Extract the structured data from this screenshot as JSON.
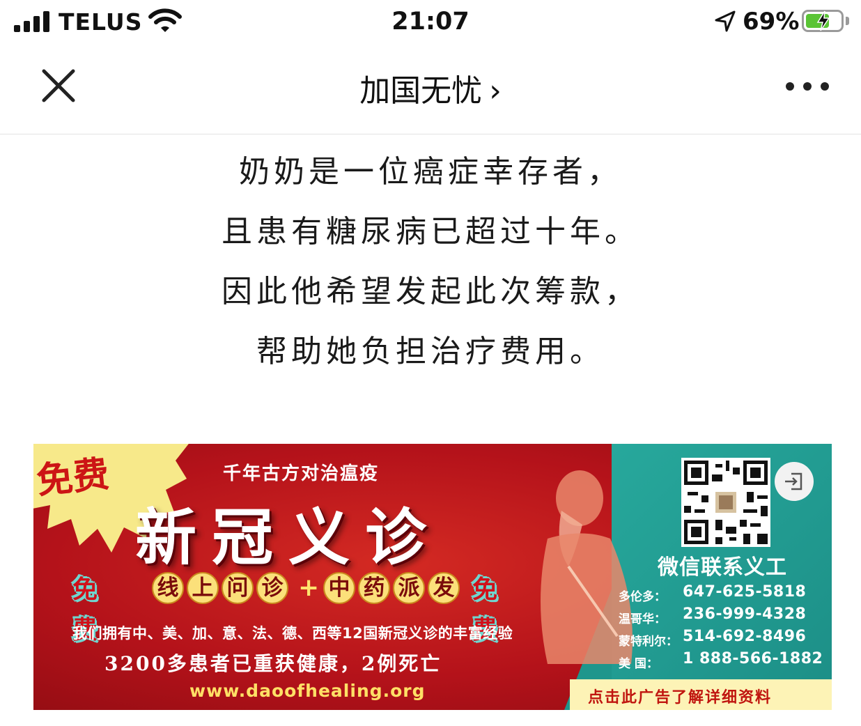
{
  "status_bar": {
    "carrier": "TELUS",
    "time": "21:07",
    "battery_percent": "69%",
    "battery_level": 0.69,
    "signal_bars": 4,
    "icons": [
      "signal-icon",
      "wifi-icon",
      "location-arrow-icon",
      "battery-charging-icon"
    ]
  },
  "nav": {
    "title": "加国无忧",
    "chevron": "›",
    "icons": [
      "close-icon",
      "more-icon"
    ]
  },
  "article": {
    "lines": [
      "奶奶是一位癌症幸存者，",
      "且患有糖尿病已超过十年。",
      "因此他希望发起此次筹款，",
      "帮助她负担治疗费用。"
    ]
  },
  "ad": {
    "badge": "免费",
    "subtitle": "千年古方对治瘟疫",
    "headline": "新冠义诊",
    "free_left": "免费",
    "service_chars_1": [
      "线",
      "上",
      "问",
      "诊"
    ],
    "plus": "+",
    "service_chars_2": [
      "中",
      "药",
      "派",
      "发"
    ],
    "free_right": "免费",
    "experience": "我们拥有中、美、加、意、法、德、西等12国新冠义诊的丰富经验",
    "patients": "3200多患者已重获健康，2例死亡",
    "website": "www.daoofhealing.org",
    "wechat_label": "微信联系义工",
    "contacts": [
      {
        "city": "多伦多：",
        "phone": "647-625-5818"
      },
      {
        "city": "温哥华：",
        "phone": "236-999-4328"
      },
      {
        "city": "蒙特利尔：",
        "phone": "514-692-8496"
      },
      {
        "city": "美 国：",
        "phone": "1 888-566-1882"
      }
    ],
    "cta": "点击此广告了解详细资料",
    "colors": {
      "red": "#b4121a",
      "teal": "#1f968c",
      "yellow": "#fdf3b6"
    }
  }
}
